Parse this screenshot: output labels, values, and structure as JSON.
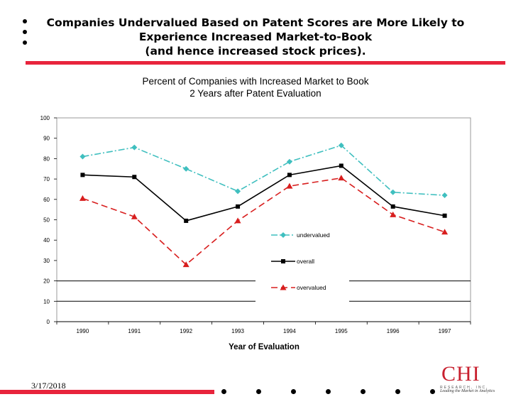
{
  "slide": {
    "title_lines": [
      "Companies Undervalued Based on Patent Scores are More Likely to",
      "Experience Increased Market-to-Book",
      "(and hence increased stock prices)."
    ],
    "date": "3/17/2018",
    "logo": {
      "text": "CHI",
      "subtext": "RESEARCH, INC.",
      "signature": "Leading the Market in Analytics"
    },
    "colors": {
      "accent": "#e8243c",
      "logo": "#c8202f"
    }
  },
  "chart_data": {
    "type": "line",
    "title_lines": [
      "Percent of Companies with Increased Market to Book",
      "2 Years after Patent Evaluation"
    ],
    "xlabel": "Year of Evaluation",
    "ylabel": "",
    "categories": [
      "1990",
      "1991",
      "1992",
      "1993",
      "1994",
      "1995",
      "1996",
      "1997"
    ],
    "ylim": [
      0,
      100
    ],
    "yticks": [
      0,
      10,
      20,
      30,
      40,
      50,
      60,
      70,
      80,
      90,
      100
    ],
    "grid": false,
    "legend_position": "center-right",
    "series": [
      {
        "name": "undervalued",
        "values": [
          81,
          85.5,
          75,
          64,
          78.5,
          86.5,
          63.5,
          62
        ],
        "color": "#3fbfbf",
        "marker": "diamond",
        "dash": "9 3 2 3"
      },
      {
        "name": "overall",
        "values": [
          72,
          71,
          49.5,
          56.5,
          72,
          76.5,
          56.5,
          52
        ],
        "color": "#000000",
        "marker": "square",
        "dash": ""
      },
      {
        "name": "overvalued",
        "values": [
          60.5,
          51.5,
          28,
          49.5,
          66.5,
          70.5,
          52.5,
          44
        ],
        "color": "#d81e1e",
        "marker": "triangle",
        "dash": "9 5"
      }
    ]
  }
}
